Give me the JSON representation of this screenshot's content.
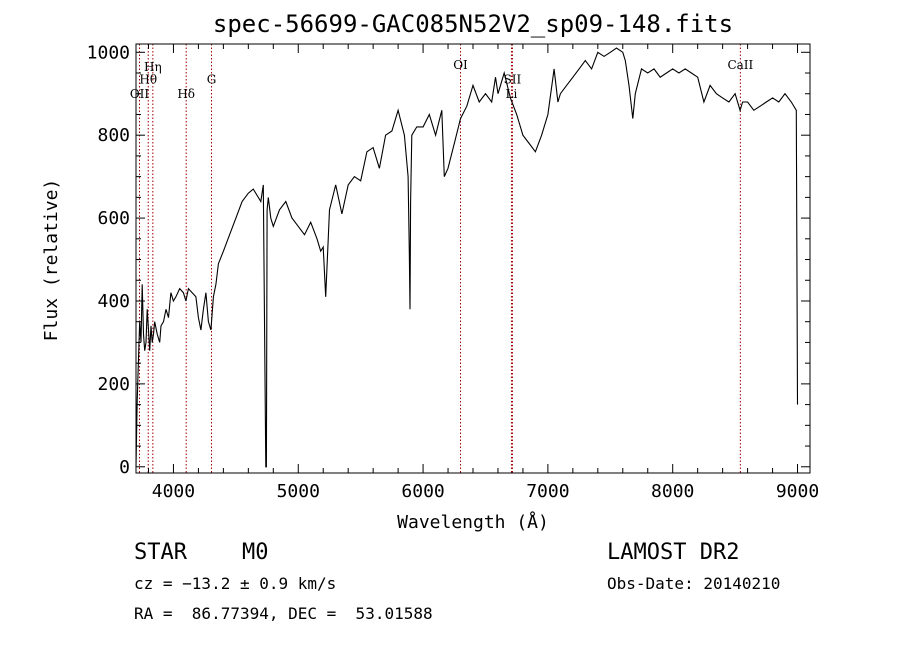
{
  "chart_data": {
    "type": "line",
    "title": "spec-56699-GAC085N52V2_sp09-148.fits",
    "xlabel": "Wavelength (Å)",
    "ylabel": "Flux (relative)",
    "xlim": [
      3700,
      9100
    ],
    "ylim": [
      -15,
      1020
    ],
    "xticks": [
      4000,
      5000,
      6000,
      7000,
      8000,
      9000
    ],
    "yticks": [
      0,
      200,
      400,
      600,
      800,
      1000
    ],
    "grid": false,
    "series": [
      {
        "x": [
          3700,
          3710,
          3720,
          3730,
          3740,
          3750,
          3760,
          3770,
          3780,
          3790,
          3800,
          3810,
          3820,
          3830,
          3840,
          3850,
          3870,
          3890,
          3900,
          3920,
          3940,
          3960,
          3980,
          4000,
          4020,
          4050,
          4080,
          4100,
          4120,
          4150,
          4180,
          4200,
          4220,
          4240,
          4260,
          4280,
          4300,
          4320,
          4340,
          4360,
          4400,
          4450,
          4500,
          4550,
          4600,
          4640,
          4680,
          4700,
          4720,
          4740,
          4745,
          4750,
          4760,
          4780,
          4800,
          4850,
          4900,
          4950,
          5000,
          5050,
          5100,
          5150,
          5180,
          5200,
          5220,
          5250,
          5300,
          5350,
          5400,
          5450,
          5500,
          5550,
          5600,
          5650,
          5700,
          5750,
          5800,
          5850,
          5880,
          5890,
          5895,
          5900,
          5910,
          5950,
          6000,
          6050,
          6100,
          6150,
          6170,
          6200,
          6250,
          6300,
          6350,
          6400,
          6450,
          6500,
          6550,
          6580,
          6600,
          6650,
          6700,
          6750,
          6800,
          6850,
          6900,
          6950,
          7000,
          7050,
          7080,
          7100,
          7150,
          7200,
          7250,
          7300,
          7350,
          7400,
          7450,
          7500,
          7550,
          7600,
          7620,
          7650,
          7680,
          7700,
          7750,
          7800,
          7850,
          7900,
          7950,
          8000,
          8050,
          8100,
          8150,
          8200,
          8250,
          8300,
          8350,
          8400,
          8450,
          8500,
          8540,
          8560,
          8600,
          8650,
          8700,
          8750,
          8800,
          8850,
          8900,
          8950,
          8990,
          9000
        ],
        "y": [
          0,
          160,
          260,
          350,
          300,
          440,
          320,
          280,
          300,
          380,
          330,
          280,
          340,
          300,
          320,
          350,
          320,
          300,
          340,
          350,
          380,
          360,
          420,
          400,
          410,
          430,
          420,
          400,
          430,
          420,
          410,
          360,
          330,
          380,
          420,
          350,
          330,
          410,
          440,
          490,
          520,
          560,
          600,
          640,
          660,
          670,
          650,
          640,
          680,
          0,
          0,
          620,
          650,
          600,
          580,
          620,
          640,
          600,
          580,
          560,
          590,
          550,
          520,
          530,
          410,
          620,
          680,
          610,
          680,
          700,
          690,
          760,
          770,
          720,
          800,
          810,
          860,
          800,
          700,
          520,
          380,
          640,
          800,
          820,
          820,
          850,
          800,
          860,
          700,
          720,
          780,
          840,
          870,
          920,
          880,
          900,
          880,
          940,
          900,
          950,
          890,
          850,
          800,
          780,
          760,
          800,
          850,
          960,
          880,
          900,
          920,
          940,
          960,
          980,
          960,
          1000,
          990,
          1000,
          1010,
          1000,
          980,
          920,
          840,
          900,
          960,
          950,
          960,
          940,
          950,
          960,
          950,
          960,
          950,
          940,
          880,
          920,
          900,
          890,
          880,
          900,
          860,
          880,
          880,
          860,
          870,
          880,
          890,
          880,
          900,
          880,
          860,
          150
        ]
      }
    ],
    "line_markers": [
      {
        "label": "OII",
        "x": 3728,
        "label_y": 890
      },
      {
        "label": "Hη",
        "x": 3835,
        "label_y": 955
      },
      {
        "label": "Hθ",
        "x": 3798,
        "label_y": 925
      },
      {
        "label": "Hδ",
        "x": 4102,
        "label_y": 890
      },
      {
        "label": "G",
        "x": 4305,
        "label_y": 925
      },
      {
        "label": "OI",
        "x": 6300,
        "label_y": 960
      },
      {
        "label": "SII",
        "x": 6716,
        "label_y": 925
      },
      {
        "label": "Li",
        "x": 6708,
        "label_y": 890
      },
      {
        "label": "CaII",
        "x": 8542,
        "label_y": 960
      }
    ],
    "marker_lines": [
      3728,
      3798,
      3835,
      4102,
      4305,
      6300,
      6708,
      6716,
      8542
    ]
  },
  "info": {
    "object_class": "STAR",
    "subclass": "M0",
    "cz": "cz = −13.2 ± 0.9 km/s",
    "coords": "RA =  86.77394, DEC =  53.01588",
    "survey": "LAMOST DR2",
    "obs_date": "Obs-Date: 20140210"
  }
}
